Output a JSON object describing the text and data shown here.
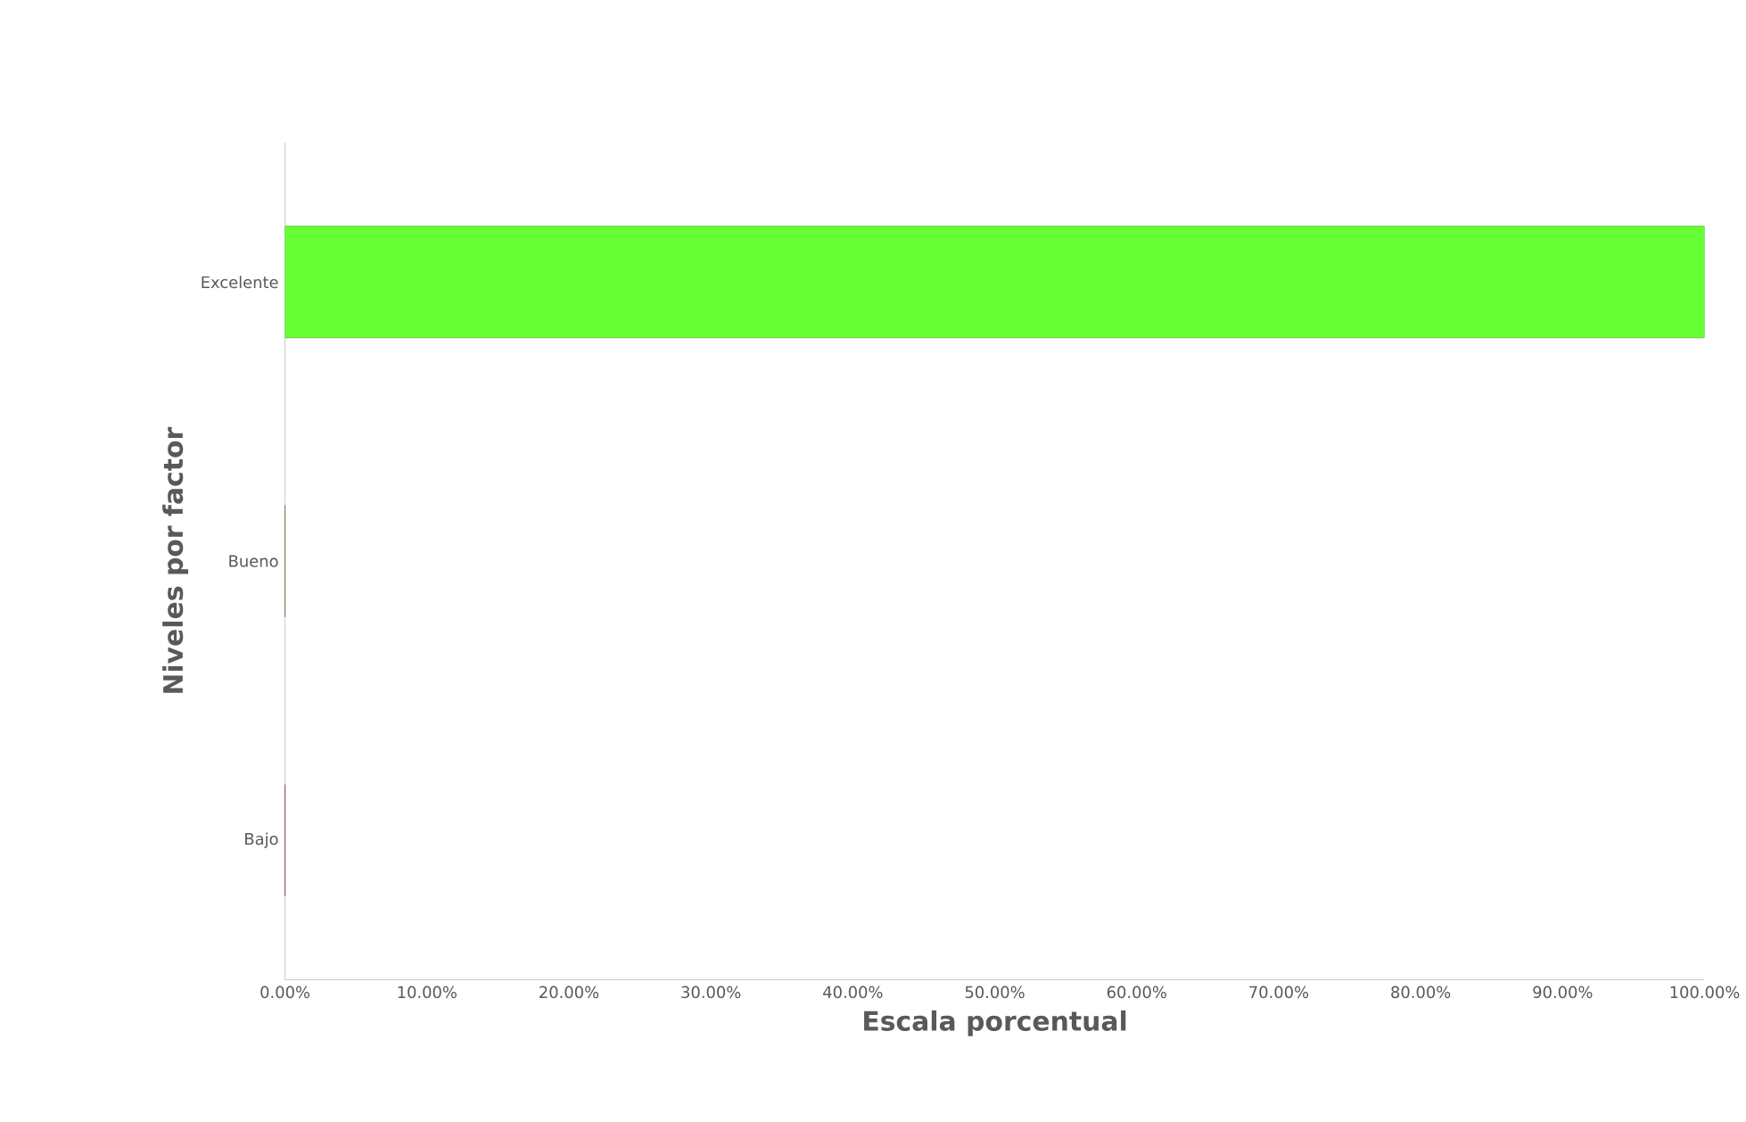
{
  "chart_data": {
    "type": "bar",
    "orientation": "horizontal",
    "xlabel": "Escala porcentual",
    "ylabel": "Niveles por factor",
    "categories": [
      "Excelente",
      "Bueno",
      "Bajo"
    ],
    "values": [
      100,
      0,
      0
    ],
    "colors": [
      "#66ff33",
      "#4d4d00",
      "#660000"
    ],
    "xlim": [
      0,
      100
    ],
    "xticks": [
      {
        "value": 0,
        "label": "0.00%"
      },
      {
        "value": 10,
        "label": "10.00%"
      },
      {
        "value": 20,
        "label": "20.00%"
      },
      {
        "value": 30,
        "label": "30.00%"
      },
      {
        "value": 40,
        "label": "40.00%"
      },
      {
        "value": 50,
        "label": "50.00%"
      },
      {
        "value": 60,
        "label": "60.00%"
      },
      {
        "value": 70,
        "label": "70.00%"
      },
      {
        "value": 80,
        "label": "80.00%"
      },
      {
        "value": 90,
        "label": "90.00%"
      },
      {
        "value": 100,
        "label": "100.00%"
      }
    ]
  }
}
